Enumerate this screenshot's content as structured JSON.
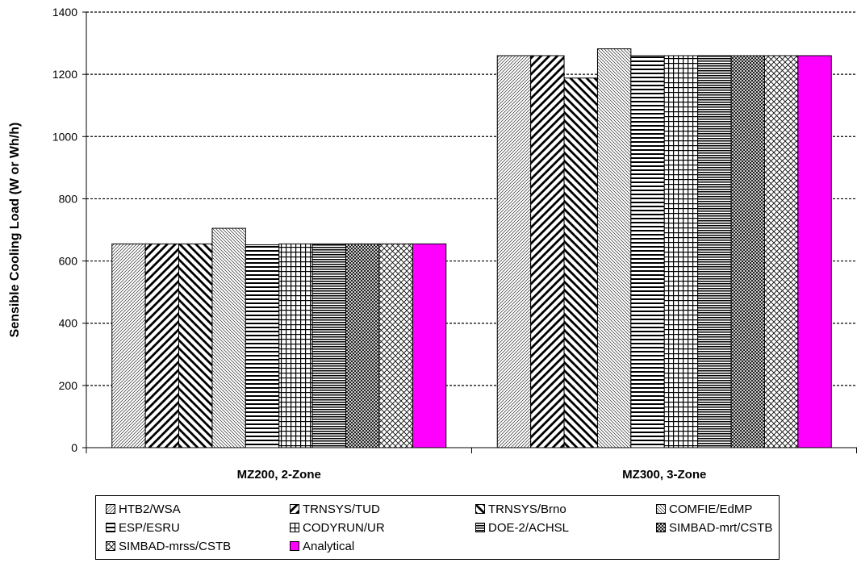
{
  "chart_data": {
    "type": "bar",
    "categories": [
      "MZ200, 2-Zone",
      "MZ300, 3-Zone"
    ],
    "ylabel": "Sensible Cooling Load (W or Wh/h)",
    "xlabel": "",
    "title": "",
    "ylim": [
      0,
      1400
    ],
    "yticks": [
      0,
      200,
      400,
      600,
      800,
      1000,
      1200,
      1400
    ],
    "grid": "horizontal dotted",
    "legend_position": "bottom",
    "series": [
      {
        "name": "HTB2/WSA",
        "pattern": "fine-diagonal-up",
        "values": [
          655,
          1260
        ]
      },
      {
        "name": "TRNSYS/TUD",
        "pattern": "diagonal-up",
        "values": [
          655,
          1260
        ]
      },
      {
        "name": "TRNSYS/Brno",
        "pattern": "diagonal-down",
        "values": [
          655,
          1188
        ]
      },
      {
        "name": "COMFIE/EdMP",
        "pattern": "fine-diagonal-down",
        "values": [
          705,
          1282
        ]
      },
      {
        "name": "ESP/ESRU",
        "pattern": "horizontal",
        "values": [
          652,
          1260
        ]
      },
      {
        "name": "CODYRUN/UR",
        "pattern": "grid",
        "values": [
          655,
          1260
        ]
      },
      {
        "name": "DOE-2/ACHSL",
        "pattern": "fine-horizontal",
        "values": [
          655,
          1260
        ]
      },
      {
        "name": "SIMBAD-mrt/CSTB",
        "pattern": "dense-cross",
        "values": [
          655,
          1260
        ]
      },
      {
        "name": "SIMBAD-mrss/CSTB",
        "pattern": "crosshatch",
        "values": [
          655,
          1260
        ]
      },
      {
        "name": "Analytical",
        "pattern": "solid",
        "color": "#FF00FF",
        "values": [
          655,
          1260
        ]
      }
    ]
  }
}
